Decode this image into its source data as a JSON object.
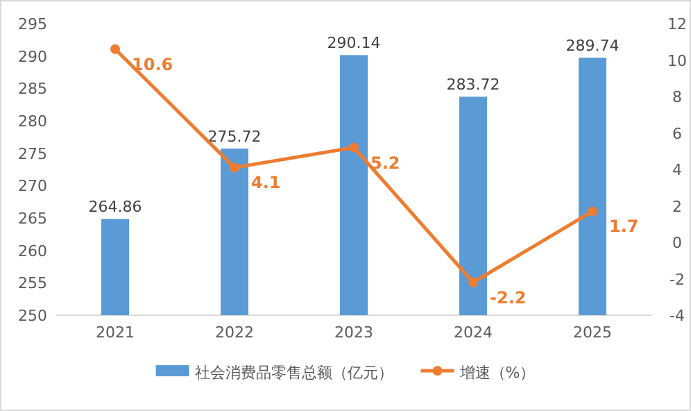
{
  "chart_data": {
    "type": "bar",
    "categories": [
      "2021",
      "2022",
      "2023",
      "2024",
      "2025"
    ],
    "series": [
      {
        "name": "社会消费品零售总额（亿元）",
        "color": "#5b9bd5",
        "values": [
          264.86,
          275.72,
          290.14,
          283.72,
          289.74
        ]
      },
      {
        "name": "增速（%）",
        "type": "line",
        "axis": "y2",
        "color": "#ed7d31",
        "marker": "circle",
        "values": [
          10.6,
          4.1,
          5.2,
          -2.2,
          1.7
        ]
      }
    ],
    "ylim": [
      250,
      295
    ],
    "yticks": [
      250,
      255,
      260,
      265,
      270,
      275,
      280,
      285,
      290,
      295
    ],
    "y2lim": [
      -4,
      12
    ],
    "y2ticks": [
      -4,
      -2,
      0,
      2,
      4,
      6,
      8,
      10,
      12
    ],
    "data_labels": true,
    "legend": "bottom",
    "grid": false
  }
}
